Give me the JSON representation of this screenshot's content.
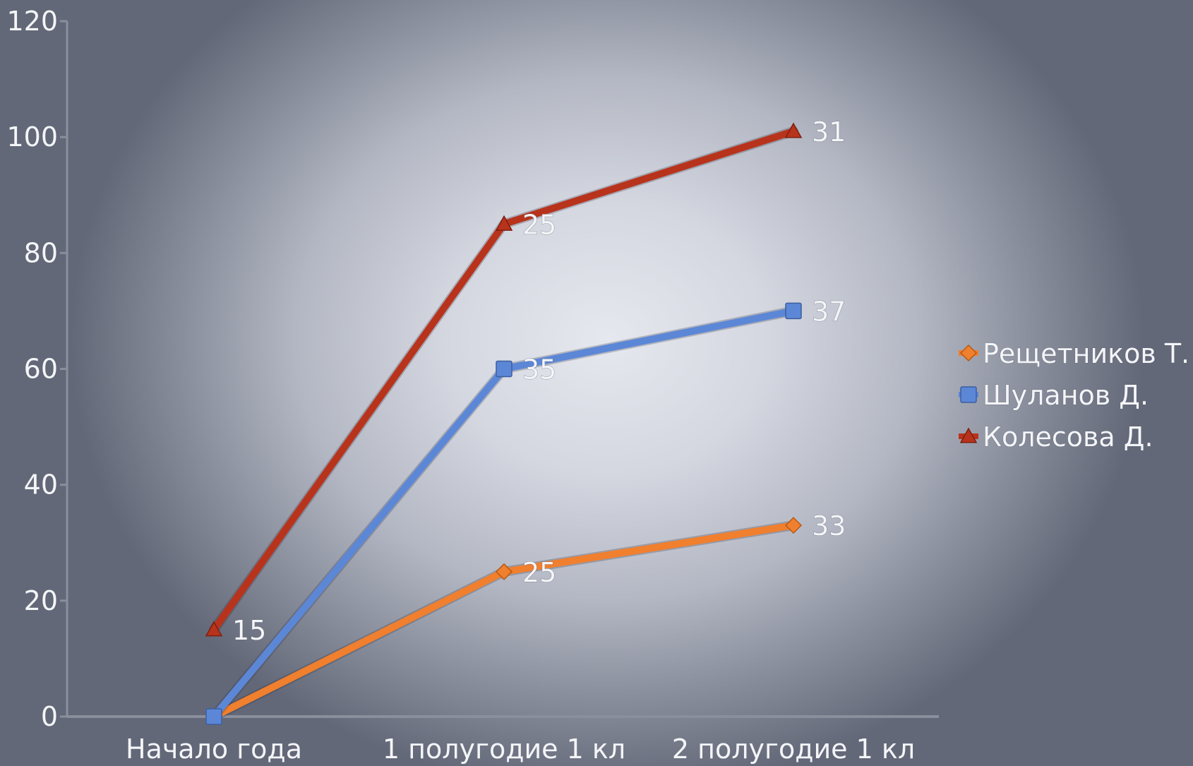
{
  "chart_data": {
    "type": "line",
    "categories": [
      "Начало года",
      "1 полугодие 1 кл",
      "2 полугодие 1 кл"
    ],
    "ylim": [
      0,
      120
    ],
    "yticks": [
      0,
      20,
      40,
      60,
      80,
      100,
      120
    ],
    "grid": false,
    "legend_position": "right",
    "series": [
      {
        "name": "Рещетников Т.",
        "values": [
          0,
          25,
          33
        ],
        "labels": [
          "",
          "25",
          "33"
        ],
        "color": "#f07f2e",
        "marker": "diamond"
      },
      {
        "name": "Шуланов Д.",
        "values": [
          0,
          60,
          70
        ],
        "labels": [
          "",
          "35",
          "37"
        ],
        "color": "#5b87d6",
        "marker": "square"
      },
      {
        "name": "Колесова Д.",
        "values": [
          15,
          85,
          101
        ],
        "labels": [
          "15",
          "25",
          "31"
        ],
        "color": "#b8331c",
        "marker": "triangle"
      }
    ]
  }
}
